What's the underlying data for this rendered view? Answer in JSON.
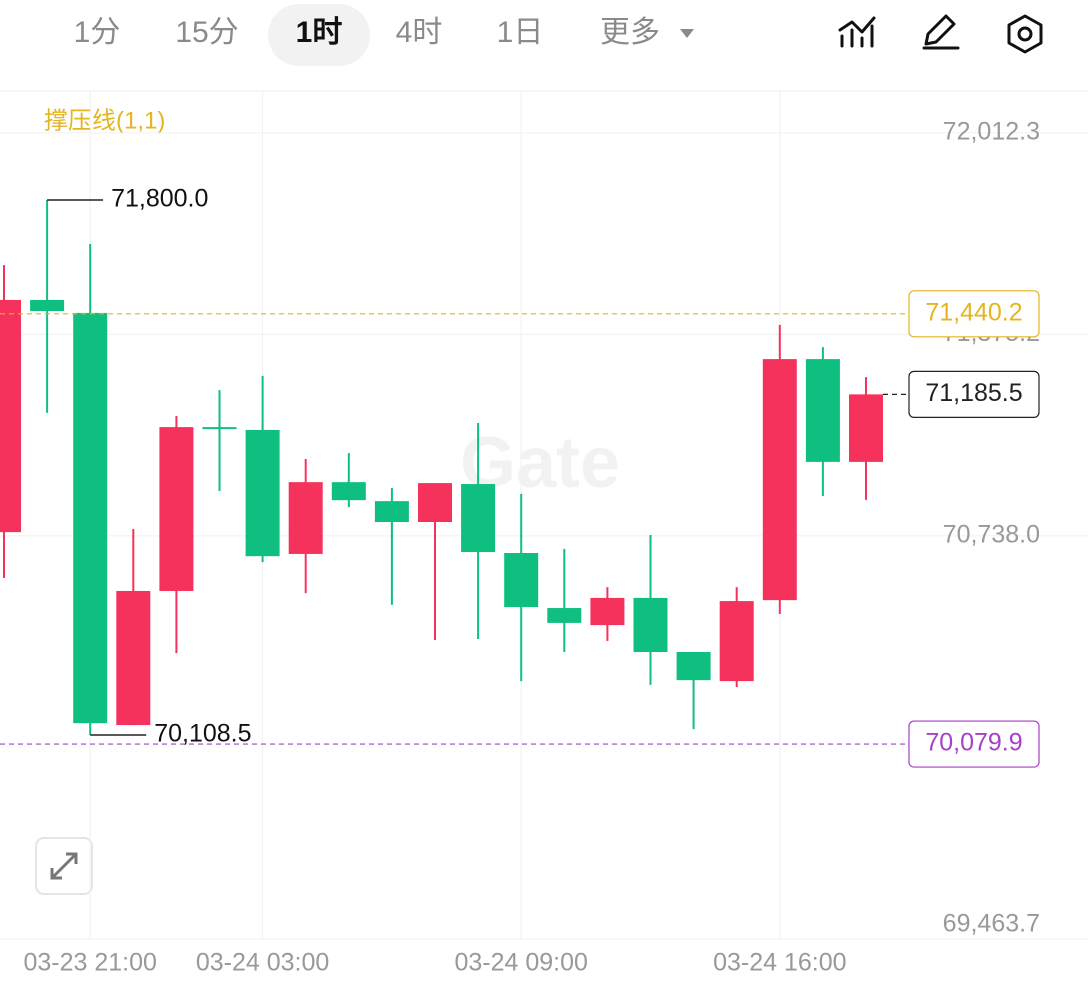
{
  "toolbar": {
    "tabs": [
      "1分",
      "15分",
      "1时",
      "4时",
      "1日",
      "更多"
    ],
    "active": 2
  },
  "chart_data": {
    "type": "candlestick",
    "indicator": "撑压线(1,1)",
    "watermark": "Gate",
    "categories": [
      null,
      null,
      "03-23 21:00",
      null,
      null,
      null,
      "03-24 03:00",
      null,
      null,
      null,
      null,
      null,
      "03-24 09:00",
      null,
      null,
      null,
      null,
      null,
      "03-24 16:00",
      null,
      null
    ],
    "open": [
      70750,
      71484,
      71443,
      70140,
      70564,
      71082,
      71073,
      70681,
      70908,
      70848,
      70782,
      70902,
      70684,
      70510,
      70456,
      70542,
      70371,
      70279,
      70535,
      71297,
      70972
    ],
    "high": [
      71594,
      71800,
      71661,
      70760,
      71117,
      71199,
      71244,
      70981,
      71000,
      70889,
      70905,
      71095,
      70871,
      70697,
      70576,
      70741,
      70371,
      70576,
      71405,
      71335,
      71240
    ],
    "low": [
      70605,
      71127,
      70108.5,
      70140,
      70368,
      70880,
      70655,
      70557,
      70829,
      70520,
      70409,
      70412,
      70279,
      70371,
      70406,
      70267,
      70127,
      70260,
      70491,
      70864,
      70852
    ],
    "close": [
      71484,
      71449,
      70146,
      70564,
      71082,
      71079,
      70674,
      70908,
      70851,
      70782,
      70905,
      70687,
      70513,
      70463,
      70542,
      70371,
      70282,
      70532,
      71297,
      70972,
      71185.5
    ],
    "up_color": "#f5325c",
    "down_color": "#0fbf7f",
    "ylim": [
      69463.7,
      72141.4
    ],
    "yticks": [
      {
        "value": 72012.3,
        "label": "72,012.3"
      },
      {
        "value": 71375.2,
        "label": "71,375.2"
      },
      {
        "value": 70738.0,
        "label": "70,738.0"
      },
      {
        "value": 69463.7,
        "label": "69,463.7"
      }
    ],
    "grid": true,
    "max_label": {
      "index": 1,
      "value": 71800,
      "label": "71,800.0"
    },
    "min_label": {
      "index": 2,
      "value": 70108.5,
      "label": "70,108.5"
    },
    "price_lines": [
      {
        "value": 71440.2,
        "label": "71,440.2",
        "color": "#e5b41f"
      },
      {
        "value": 70079.9,
        "label": "70,079.9",
        "color": "#a83fc9"
      }
    ],
    "last_price": {
      "value": 71185.5,
      "label": "71,185.5",
      "color": "#222222"
    }
  }
}
